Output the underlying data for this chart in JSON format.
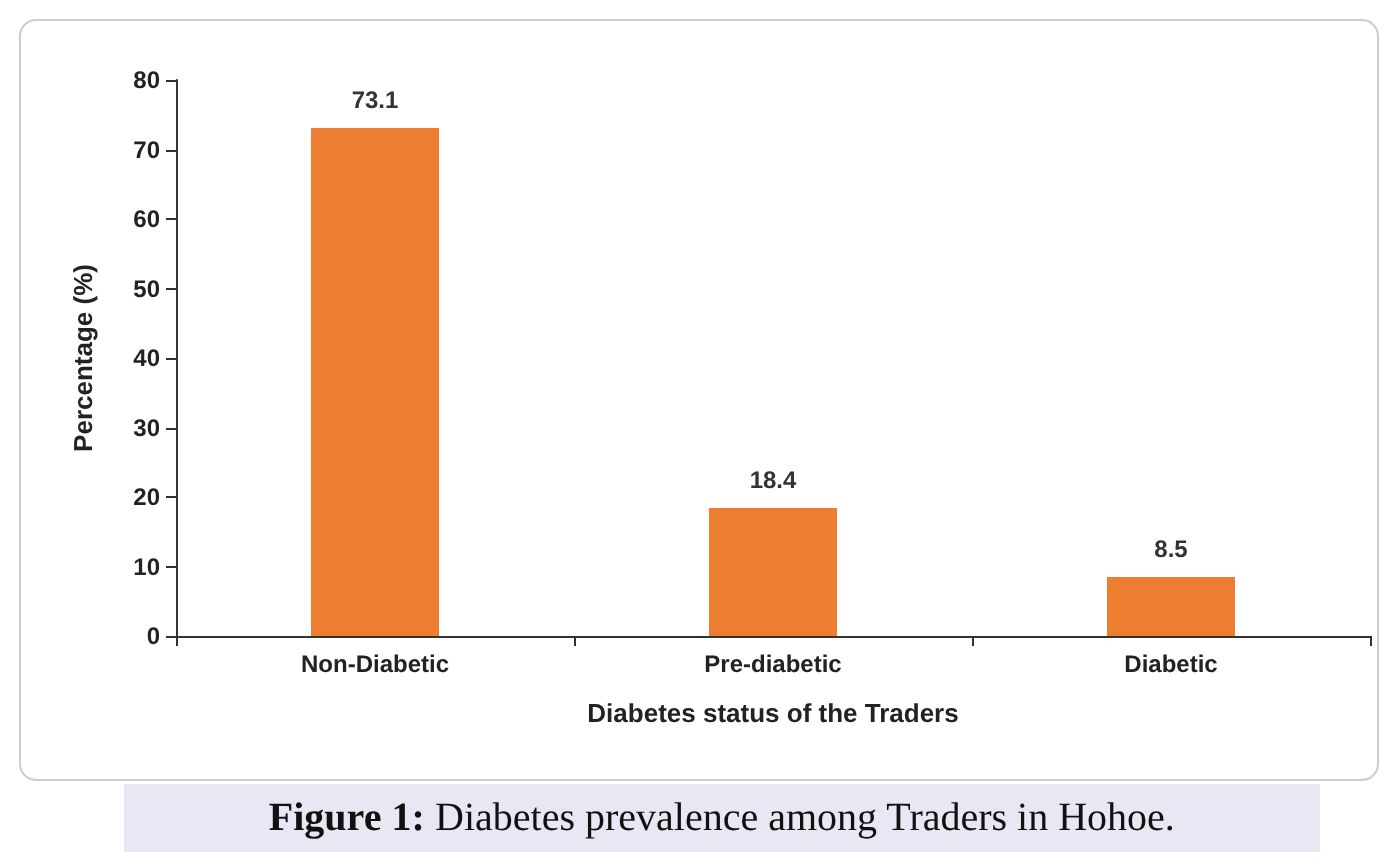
{
  "chart_data": {
    "type": "bar",
    "xlabel": "Diabetes status of the Traders",
    "ylabel": "Percentage (%)",
    "categories": [
      "Non-Diabetic",
      "Pre-diabetic",
      "Diabetic"
    ],
    "values": [
      73.1,
      18.4,
      8.5
    ],
    "color": "#ed7d31",
    "ylim": [
      0,
      80
    ],
    "yticks": [
      0,
      10,
      20,
      30,
      40,
      50,
      60,
      70,
      80
    ],
    "grid": false,
    "data_labels": true,
    "annotations": [
      "Figure 1: Diabetes prevalence among Traders in Hohoe."
    ]
  }
}
